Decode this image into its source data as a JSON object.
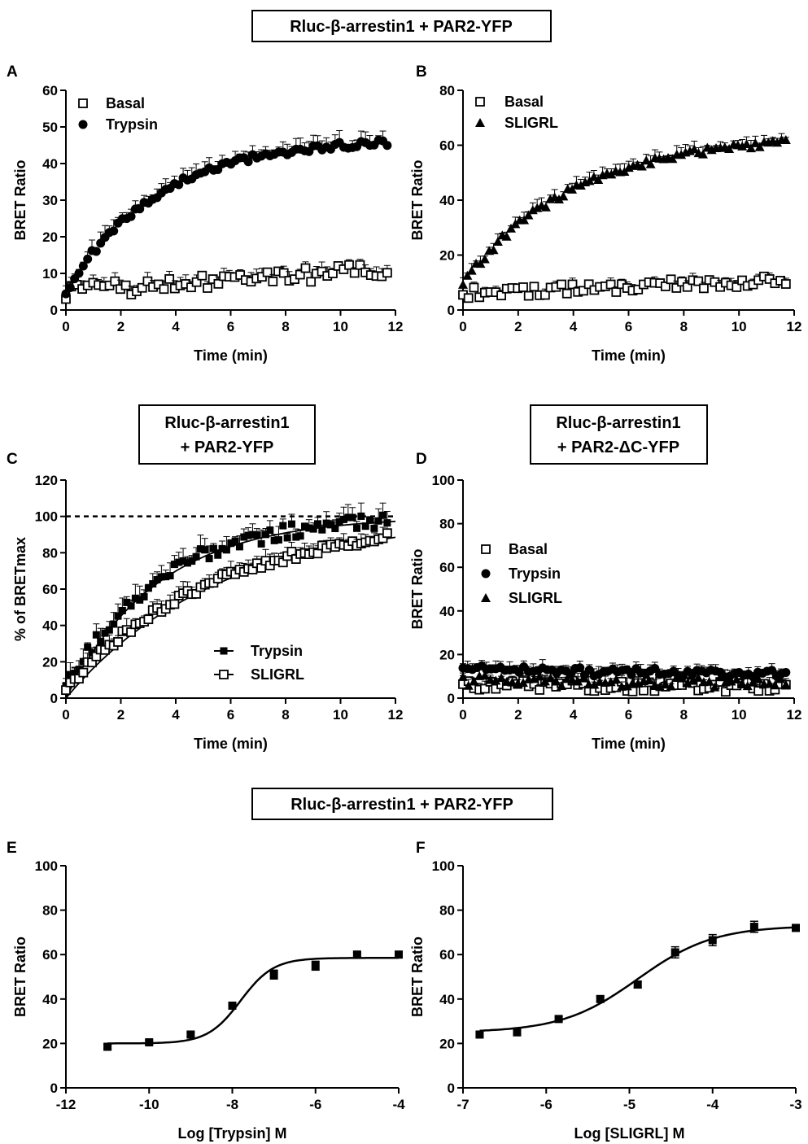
{
  "figure": {
    "banners": [
      {
        "id": "top",
        "lines": [
          "Rluc-β-arrestin1 + PAR2-YFP"
        ]
      },
      {
        "id": "c",
        "lines": [
          "Rluc-β-arrestin1",
          "+ PAR2-YFP"
        ]
      },
      {
        "id": "d",
        "lines": [
          "Rluc-β-arrestin1",
          "+ PAR2-ΔC-YFP"
        ]
      },
      {
        "id": "bottom",
        "lines": [
          "Rluc-β-arrestin1 + PAR2-YFP"
        ]
      }
    ]
  },
  "chart_data": [
    {
      "id": "A",
      "panel_label": "A",
      "type": "scatter",
      "xlabel": "Time (min)",
      "ylabel": "BRET Ratio",
      "xlim": [
        0,
        12
      ],
      "ylim": [
        0,
        60
      ],
      "xticks": [
        0,
        2,
        4,
        6,
        8,
        10,
        12
      ],
      "yticks": [
        0,
        10,
        20,
        30,
        40,
        50,
        60
      ],
      "xtick_labels": [
        "0",
        "2",
        "4",
        "6",
        "8",
        "10",
        "12"
      ],
      "ytick_labels": [
        "0",
        "10",
        "20",
        "30",
        "40",
        "50",
        "60"
      ],
      "legend_position": "top-left",
      "series": [
        {
          "name": "Basal",
          "marker": "open-square",
          "x_range": [
            0,
            11.7
          ],
          "n": 60,
          "curve": "flat",
          "start": 5,
          "end": 11,
          "noise": 2,
          "err": 2
        },
        {
          "name": "Trypsin",
          "marker": "filled-circle",
          "x_range": [
            0,
            11.7
          ],
          "n": 75,
          "curve": "rise",
          "start": 5,
          "end": 47,
          "k": 0.3,
          "noise": 0.9,
          "err": 2.5
        }
      ]
    },
    {
      "id": "B",
      "panel_label": "B",
      "type": "scatter",
      "xlabel": "Time (min)",
      "ylabel": "BRET Ratio",
      "xlim": [
        0,
        12
      ],
      "ylim": [
        0,
        80
      ],
      "xticks": [
        0,
        2,
        4,
        6,
        8,
        10,
        12
      ],
      "yticks": [
        0,
        20,
        40,
        60,
        80
      ],
      "xtick_labels": [
        "0",
        "2",
        "4",
        "6",
        "8",
        "10",
        "12"
      ],
      "ytick_labels": [
        "0",
        "20",
        "40",
        "60",
        "80"
      ],
      "legend_position": "top-left",
      "series": [
        {
          "name": "Basal",
          "marker": "open-square",
          "x_range": [
            0,
            11.7
          ],
          "n": 60,
          "curve": "flat",
          "start": 6,
          "end": 11,
          "noise": 2,
          "err": 2
        },
        {
          "name": "SLIGRL",
          "marker": "filled-triangle",
          "x_range": [
            0,
            11.7
          ],
          "n": 75,
          "curve": "rise",
          "start": 10,
          "end": 64,
          "k": 0.25,
          "noise": 1.2,
          "err": 2.5
        }
      ]
    },
    {
      "id": "C",
      "panel_label": "C",
      "type": "scatter",
      "xlabel": "Time (min)",
      "ylabel": "% of BRETmax",
      "xlim": [
        0,
        12
      ],
      "ylim": [
        0,
        120
      ],
      "xticks": [
        0,
        2,
        4,
        6,
        8,
        10,
        12
      ],
      "yticks": [
        0,
        20,
        40,
        60,
        80,
        100,
        120
      ],
      "xtick_labels": [
        "0",
        "2",
        "4",
        "6",
        "8",
        "10",
        "12"
      ],
      "ytick_labels": [
        "0",
        "20",
        "40",
        "60",
        "80",
        "100",
        "120"
      ],
      "reference_line_y": 100,
      "legend_position": "bottom-center",
      "series": [
        {
          "name": "Trypsin",
          "marker": "filled-square",
          "x_range": [
            0,
            11.7
          ],
          "n": 75,
          "curve": "rise",
          "start": 5,
          "end": 100,
          "k": 0.3,
          "noise": 4,
          "err": 6,
          "fit": true
        },
        {
          "name": "SLIGRL",
          "marker": "open-square",
          "x_range": [
            0,
            11.7
          ],
          "n": 75,
          "curve": "rise",
          "start": 5,
          "end": 100,
          "k": 0.18,
          "noise": 2.5,
          "err": 5,
          "fit": true
        }
      ]
    },
    {
      "id": "D",
      "panel_label": "D",
      "type": "scatter",
      "xlabel": "Time (min)",
      "ylabel": "BRET Ratio",
      "xlim": [
        0,
        12
      ],
      "ylim": [
        0,
        100
      ],
      "xticks": [
        0,
        2,
        4,
        6,
        8,
        10,
        12
      ],
      "yticks": [
        0,
        20,
        40,
        60,
        80,
        100
      ],
      "xtick_labels": [
        "0",
        "2",
        "4",
        "6",
        "8",
        "10",
        "12"
      ],
      "ytick_labels": [
        "0",
        "20",
        "40",
        "60",
        "80",
        "100"
      ],
      "legend_position": "center-left",
      "series": [
        {
          "name": "Basal",
          "marker": "open-square",
          "x_range": [
            0,
            11.7
          ],
          "n": 60,
          "curve": "flat",
          "start": 6,
          "end": 5,
          "noise": 2.5,
          "err": 3
        },
        {
          "name": "Trypsin",
          "marker": "filled-circle",
          "x_range": [
            0,
            11.7
          ],
          "n": 70,
          "curve": "flat",
          "start": 13,
          "end": 11,
          "noise": 2,
          "err": 3
        },
        {
          "name": "SLIGRL",
          "marker": "filled-triangle",
          "x_range": [
            0,
            11.7
          ],
          "n": 60,
          "curve": "flat",
          "start": 8,
          "end": 7,
          "noise": 2.5,
          "err": 3
        }
      ]
    },
    {
      "id": "E",
      "panel_label": "E",
      "type": "scatter",
      "xlabel": "Log [Trypsin] M",
      "ylabel": "BRET Ratio",
      "xlim": [
        -12,
        -4
      ],
      "ylim": [
        0,
        100
      ],
      "xticks": [
        -12,
        -10,
        -8,
        -6,
        -4
      ],
      "yticks": [
        0,
        20,
        40,
        60,
        80,
        100
      ],
      "xtick_labels": [
        "-12",
        "-10",
        "-8",
        "-6",
        "-4"
      ],
      "ytick_labels": [
        "0",
        "20",
        "40",
        "60",
        "80",
        "100"
      ],
      "points": [
        {
          "x": -11,
          "y": 18.5,
          "err": 1
        },
        {
          "x": -10,
          "y": 20.5,
          "err": 1
        },
        {
          "x": -9,
          "y": 24,
          "err": 1
        },
        {
          "x": -8,
          "y": 37,
          "err": 1.5
        },
        {
          "x": -7,
          "y": 51,
          "err": 2
        },
        {
          "x": -6,
          "y": 55,
          "err": 2
        },
        {
          "x": -5,
          "y": 60,
          "err": 1
        },
        {
          "x": -4,
          "y": 60,
          "err": 1
        }
      ],
      "fit": {
        "bottom": 20,
        "top": 58.5,
        "logEC50": -7.8,
        "hill": 1.1,
        "x_from": -11,
        "x_to": -4
      }
    },
    {
      "id": "F",
      "panel_label": "F",
      "type": "scatter",
      "xlabel": "Log [SLIGRL] M",
      "ylabel": "BRET Ratio",
      "xlim": [
        -7,
        -3
      ],
      "ylim": [
        0,
        100
      ],
      "xticks": [
        -7,
        -6,
        -5,
        -4,
        -3
      ],
      "yticks": [
        0,
        20,
        40,
        60,
        80,
        100
      ],
      "xtick_labels": [
        "-7",
        "-6",
        "-5",
        "-4",
        "-3"
      ],
      "ytick_labels": [
        "0",
        "20",
        "40",
        "60",
        "80",
        "100"
      ],
      "points": [
        {
          "x": -6.8,
          "y": 24,
          "err": 1
        },
        {
          "x": -6.35,
          "y": 25,
          "err": 1
        },
        {
          "x": -5.85,
          "y": 31,
          "err": 1
        },
        {
          "x": -5.35,
          "y": 40,
          "err": 1
        },
        {
          "x": -4.9,
          "y": 46.5,
          "err": 1.5
        },
        {
          "x": -4.45,
          "y": 61,
          "err": 2.5
        },
        {
          "x": -4,
          "y": 66.5,
          "err": 2.5
        },
        {
          "x": -3.5,
          "y": 72.5,
          "err": 2.5
        },
        {
          "x": -3,
          "y": 72,
          "err": 1
        }
      ],
      "fit": {
        "bottom": 25,
        "top": 73,
        "logEC50": -4.9,
        "hill": 0.95,
        "x_from": -6.8,
        "x_to": -3
      }
    }
  ]
}
